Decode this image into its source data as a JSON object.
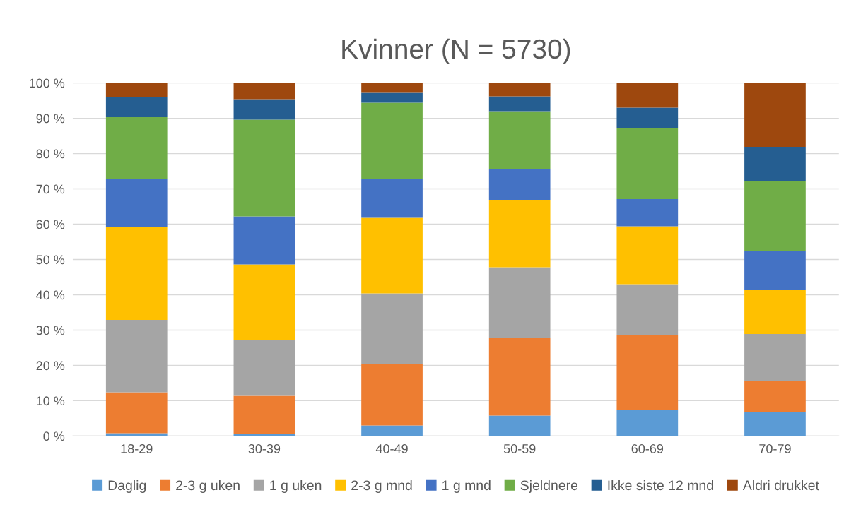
{
  "chart_data": {
    "type": "bar",
    "title": "Kvinner (N = 5730)",
    "stacked": true,
    "categories": [
      "18-29",
      "30-39",
      "40-49",
      "50-59",
      "60-69",
      "70-79"
    ],
    "series": [
      {
        "name": "Daglig",
        "color": "#5b9bd5",
        "values": [
          0.8,
          0.6,
          3.0,
          5.8,
          7.4,
          6.8
        ]
      },
      {
        "name": "2-3 g uken",
        "color": "#ed7d31",
        "values": [
          11.6,
          10.8,
          17.5,
          22.1,
          21.3,
          8.9
        ]
      },
      {
        "name": "1 g uken",
        "color": "#a5a5a5",
        "values": [
          20.5,
          15.9,
          19.9,
          19.9,
          14.3,
          13.2
        ]
      },
      {
        "name": "2-3 g mnd",
        "color": "#ffc000",
        "values": [
          26.3,
          21.3,
          21.4,
          19.1,
          16.4,
          12.5
        ]
      },
      {
        "name": "1 g mnd",
        "color": "#4472c4",
        "values": [
          13.7,
          13.6,
          11.1,
          8.8,
          7.7,
          11.0
        ]
      },
      {
        "name": "Sjeldnere",
        "color": "#70ad47",
        "values": [
          17.5,
          27.4,
          21.5,
          16.3,
          20.2,
          19.7
        ]
      },
      {
        "name": "Ikke siste 12 mnd",
        "color": "#255e91",
        "values": [
          5.6,
          5.8,
          3.0,
          4.2,
          5.7,
          9.8
        ]
      },
      {
        "name": "Aldri drukket",
        "color": "#9e480e",
        "values": [
          4.0,
          4.6,
          2.6,
          3.8,
          7.0,
          18.1
        ]
      }
    ],
    "ylim": [
      0,
      100
    ],
    "yticks": [
      {
        "value": 0,
        "label": "0 %"
      },
      {
        "value": 10,
        "label": "10 %"
      },
      {
        "value": 20,
        "label": "20 %"
      },
      {
        "value": 30,
        "label": "30 %"
      },
      {
        "value": 40,
        "label": "40 %"
      },
      {
        "value": 50,
        "label": "50 %"
      },
      {
        "value": 60,
        "label": "60 %"
      },
      {
        "value": 70,
        "label": "70 %"
      },
      {
        "value": 80,
        "label": "80 %"
      },
      {
        "value": 90,
        "label": "90 %"
      },
      {
        "value": 100,
        "label": "100 %"
      }
    ],
    "grid": "y",
    "legend": "bottom"
  }
}
